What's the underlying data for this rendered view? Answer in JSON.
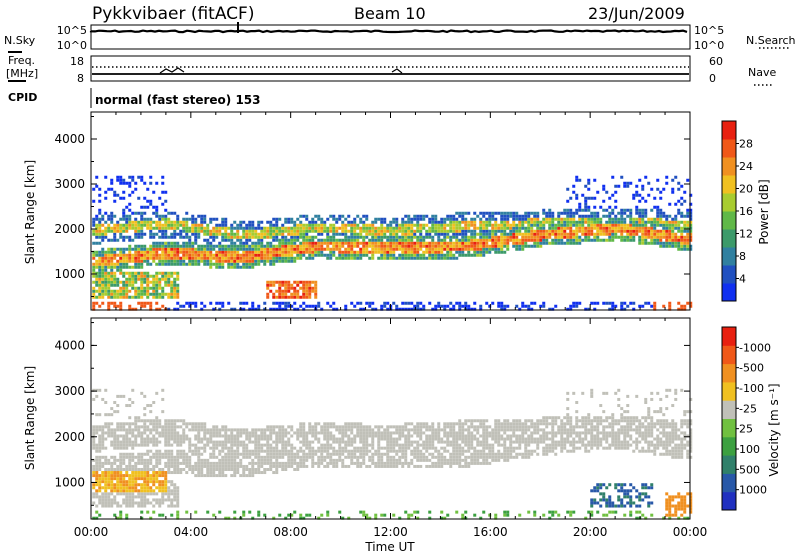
{
  "header": {
    "station": "Pykkvibaer (fitACF)",
    "beam": "Beam 10",
    "date": "23/Jun/2009"
  },
  "top_panels": {
    "nsky_label": "N.Sky",
    "nsearch_label": "N.Search",
    "nsky_ticks": [
      "10^5",
      "10^0"
    ],
    "nsearch_ticks": [
      "10^5",
      "10^0"
    ],
    "freq_label_1": "Freq.",
    "freq_label_2": "[MHz]",
    "freq_ticks": [
      "18",
      "8"
    ],
    "nave_label": "Nave",
    "nave_ticks": [
      "60",
      "0"
    ],
    "cpid_label": "CPID",
    "cpid_text": "normal (fast stereo) 153"
  },
  "chart_data": [
    {
      "type": "heatmap",
      "title": "",
      "xlabel": "Time UT",
      "ylabel": "Slant Range [km]",
      "x_ticks": [
        "00:00",
        "04:00",
        "08:00",
        "12:00",
        "16:00",
        "20:00",
        "00:00"
      ],
      "y_ticks": [
        1000,
        2000,
        3000,
        4000
      ],
      "ylim": [
        200,
        4600
      ],
      "colorbar": {
        "label": "Power [dB]",
        "ticks": [
          "4",
          "8",
          "12",
          "16",
          "20",
          "24",
          "28"
        ],
        "colors": [
          "#1030f0",
          "#2050c0",
          "#3080a0",
          "#3c9a6a",
          "#60b848",
          "#a8cc30",
          "#f0c020",
          "#f09020",
          "#f05818",
          "#e82010"
        ]
      },
      "bands": [
        {
          "x": [
            0.0,
            24.0
          ],
          "center": [
            1300,
            1500,
            1400,
            1650,
            1600,
            1650,
            1900,
            2050,
            1800
          ],
          "level": "high"
        },
        {
          "x": [
            0.5,
            24.0
          ],
          "center": [
            2000,
            2150,
            1900,
            2050,
            2000,
            2100,
            2150,
            2200,
            2100
          ],
          "level": "mid"
        },
        {
          "x": [
            0.3,
            3.5
          ],
          "center": [
            700,
            800,
            900,
            1000
          ],
          "level": "high"
        }
      ]
    },
    {
      "type": "heatmap",
      "title": "",
      "xlabel": "Time UT",
      "ylabel": "Slant Range [km]",
      "x_ticks": [
        "00:00",
        "04:00",
        "08:00",
        "12:00",
        "16:00",
        "20:00",
        "00:00"
      ],
      "y_ticks": [
        1000,
        2000,
        3000,
        4000
      ],
      "ylim": [
        200,
        4600
      ],
      "colorbar": {
        "label": "Velocity [m s⁻¹]",
        "ticks": [
          "1000",
          "500",
          "100",
          "25",
          "-25",
          "-100",
          "-500",
          "-1000"
        ],
        "colors": [
          "#2030c0",
          "#2858a8",
          "#30806a",
          "#3ca040",
          "#70c040",
          "#c0c0b8",
          "#f0c020",
          "#f09020",
          "#f05818",
          "#e82010"
        ]
      },
      "features": [
        {
          "x": [
            0.0,
            24.0
          ],
          "range": [
            900,
            2300
          ],
          "color": "ground-scatter-grey"
        },
        {
          "x": [
            0.0,
            3.0
          ],
          "range": [
            800,
            1300
          ],
          "color": "orange"
        },
        {
          "x": [
            20.0,
            22.5
          ],
          "range": [
            500,
            1000
          ],
          "color": "teal"
        },
        {
          "x": [
            23.0,
            24.0
          ],
          "range": [
            300,
            800
          ],
          "color": "orange"
        }
      ]
    }
  ]
}
